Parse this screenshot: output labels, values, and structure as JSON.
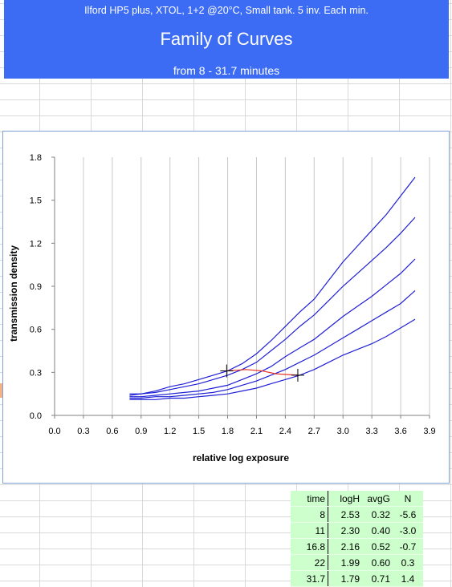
{
  "header": {
    "subtitle": "Ilford HP5 plus,   XTOL, 1+2 @20°C,   Small tank. 5 inv. Each min.",
    "title": "Family of Curves",
    "range": "from 8 - 31.7 minutes"
  },
  "chart_data": {
    "type": "line",
    "xlabel": "relative log exposure",
    "ylabel": "transmission density",
    "xlim": [
      0.0,
      3.9
    ],
    "ylim": [
      0.0,
      1.8
    ],
    "x_ticks": [
      "0.0",
      "0.3",
      "0.6",
      "0.9",
      "1.2",
      "1.5",
      "1.8",
      "2.1",
      "2.4",
      "2.7",
      "3.0",
      "3.3",
      "3.6",
      "3.9"
    ],
    "y_ticks": [
      "0.0",
      "0.3",
      "0.6",
      "0.9",
      "1.2",
      "1.5",
      "1.8"
    ],
    "grid": "vertical",
    "colors": {
      "curves": "#1f1fd6",
      "speed_line": "#e8362a",
      "markers": "#000000"
    },
    "series": [
      {
        "x": [
          0.78,
          0.9,
          1.05,
          1.2,
          1.35,
          1.5,
          1.65,
          1.8,
          1.95,
          2.1,
          2.25,
          2.4,
          2.55,
          2.7,
          2.85,
          3.0,
          3.15,
          3.3,
          3.45,
          3.6,
          3.75
        ],
        "y": [
          0.15,
          0.15,
          0.17,
          0.2,
          0.22,
          0.25,
          0.28,
          0.31,
          0.36,
          0.43,
          0.52,
          0.62,
          0.72,
          0.81,
          0.94,
          1.07,
          1.18,
          1.29,
          1.4,
          1.53,
          1.66
        ]
      },
      {
        "x": [
          0.78,
          0.9,
          1.05,
          1.2,
          1.35,
          1.5,
          1.65,
          1.8,
          1.95,
          2.1,
          2.25,
          2.4,
          2.55,
          2.7,
          2.85,
          3.0,
          3.15,
          3.3,
          3.45,
          3.6,
          3.75
        ],
        "y": [
          0.14,
          0.15,
          0.16,
          0.18,
          0.2,
          0.22,
          0.25,
          0.28,
          0.32,
          0.37,
          0.45,
          0.53,
          0.62,
          0.7,
          0.8,
          0.9,
          0.99,
          1.08,
          1.17,
          1.27,
          1.38
        ]
      },
      {
        "x": [
          0.78,
          0.9,
          1.05,
          1.2,
          1.35,
          1.5,
          1.65,
          1.8,
          1.95,
          2.1,
          2.25,
          2.4,
          2.55,
          2.7,
          2.85,
          3.0,
          3.15,
          3.3,
          3.45,
          3.6,
          3.75
        ],
        "y": [
          0.13,
          0.13,
          0.14,
          0.15,
          0.16,
          0.17,
          0.19,
          0.21,
          0.25,
          0.29,
          0.34,
          0.41,
          0.47,
          0.53,
          0.61,
          0.69,
          0.76,
          0.83,
          0.91,
          0.99,
          1.09
        ]
      },
      {
        "x": [
          0.78,
          0.9,
          1.05,
          1.2,
          1.35,
          1.5,
          1.65,
          1.8,
          1.95,
          2.1,
          2.25,
          2.4,
          2.55,
          2.7,
          2.85,
          3.0,
          3.15,
          3.3,
          3.45,
          3.6,
          3.75
        ],
        "y": [
          0.12,
          0.12,
          0.13,
          0.13,
          0.14,
          0.15,
          0.16,
          0.18,
          0.21,
          0.24,
          0.28,
          0.32,
          0.37,
          0.42,
          0.48,
          0.54,
          0.6,
          0.66,
          0.72,
          0.78,
          0.87
        ]
      },
      {
        "x": [
          0.78,
          0.9,
          1.05,
          1.2,
          1.35,
          1.5,
          1.65,
          1.8,
          1.95,
          2.1,
          2.25,
          2.4,
          2.55,
          2.7,
          2.85,
          3.0,
          3.15,
          3.3,
          3.45,
          3.6,
          3.75
        ],
        "y": [
          0.11,
          0.11,
          0.11,
          0.12,
          0.12,
          0.13,
          0.14,
          0.15,
          0.17,
          0.19,
          0.22,
          0.25,
          0.28,
          0.32,
          0.37,
          0.42,
          0.46,
          0.5,
          0.55,
          0.61,
          0.67
        ]
      }
    ],
    "speed_points": [
      {
        "x": 1.79,
        "y": 0.31
      },
      {
        "x": 1.99,
        "y": 0.32
      },
      {
        "x": 2.16,
        "y": 0.31
      },
      {
        "x": 2.3,
        "y": 0.29
      },
      {
        "x": 2.53,
        "y": 0.28
      }
    ],
    "markers": [
      {
        "x": 1.79,
        "y": 0.31
      },
      {
        "x": 2.53,
        "y": 0.28
      }
    ]
  },
  "table": {
    "headers": [
      "time",
      "logH",
      "avgG",
      "N"
    ],
    "rows": [
      [
        "8",
        "2.53",
        "0.32",
        "-5.6"
      ],
      [
        "11",
        "2.30",
        "0.40",
        "-3.0"
      ],
      [
        "16.8",
        "2.16",
        "0.52",
        "-0.7"
      ],
      [
        "22",
        "1.99",
        "0.60",
        "0.3"
      ],
      [
        "31.7",
        "1.79",
        "0.71",
        "1.4"
      ]
    ]
  }
}
